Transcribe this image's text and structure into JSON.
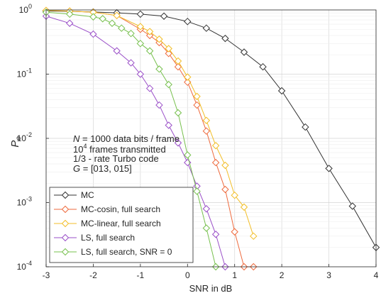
{
  "chart_data": {
    "type": "line",
    "xlabel": "SNR in dB",
    "ylabel": "P_e",
    "ylabel_main": "P",
    "ylabel_sub": "e",
    "xlim": [
      -3,
      4
    ],
    "ylim": [
      0.0001,
      1
    ],
    "y_scale": "log",
    "grid": true,
    "legend_placement": "bottom-left",
    "x_ticks": [
      -3,
      -2,
      -1,
      0,
      1,
      2,
      3,
      4
    ],
    "x_tick_labels": [
      "-3",
      "-2",
      "-1",
      "0",
      "1",
      "2",
      "3",
      "4"
    ],
    "y_ticks": [
      {
        "value": 1,
        "base": "10",
        "exp": "0"
      },
      {
        "value": 0.1,
        "base": "10",
        "exp": "-1"
      },
      {
        "value": 0.01,
        "base": "10",
        "exp": "-2"
      },
      {
        "value": 0.001,
        "base": "10",
        "exp": "-3"
      },
      {
        "value": 0.0001,
        "base": "10",
        "exp": "-4"
      }
    ],
    "series": [
      {
        "name": "MC",
        "color": "#333333",
        "x": [
          -3,
          -2.5,
          -2,
          -1.5,
          -1,
          -0.5,
          0,
          0.4,
          0.8,
          1.2,
          1.6,
          2,
          2.5,
          3,
          3.5,
          4
        ],
        "y": [
          0.96,
          0.95,
          0.93,
          0.9,
          0.86,
          0.8,
          0.66,
          0.52,
          0.36,
          0.22,
          0.13,
          0.055,
          0.015,
          0.0034,
          0.00088,
          0.0002
        ]
      },
      {
        "name": "MC-cosin, full search",
        "color": "#EE6A3D",
        "x": [
          -3,
          -2.5,
          -2,
          -1.5,
          -1,
          -0.8,
          -0.6,
          -0.4,
          -0.2,
          0,
          0.2,
          0.4,
          0.6,
          0.8,
          1,
          1.2,
          1.4
        ],
        "y": [
          0.98,
          0.96,
          0.92,
          0.82,
          0.5,
          0.4,
          0.31,
          0.21,
          0.13,
          0.075,
          0.033,
          0.013,
          0.0042,
          0.0016,
          0.00035,
          0.0001,
          0.0001
        ]
      },
      {
        "name": "MC-linear, full search",
        "color": "#F2BE28",
        "x": [
          -3,
          -2.5,
          -2,
          -1.5,
          -1,
          -0.8,
          -0.6,
          -0.4,
          -0.2,
          0,
          0.2,
          0.4,
          0.6,
          0.8,
          1,
          1.2,
          1.4
        ],
        "y": [
          0.98,
          0.96,
          0.92,
          0.82,
          0.55,
          0.46,
          0.35,
          0.25,
          0.16,
          0.09,
          0.045,
          0.019,
          0.0077,
          0.0038,
          0.0013,
          0.00085,
          0.0003
        ]
      },
      {
        "name": "LS, full search",
        "color": "#9A4FC8",
        "x": [
          -3,
          -2.5,
          -2,
          -1.5,
          -1.2,
          -1,
          -0.8,
          -0.6,
          -0.4,
          -0.2,
          0,
          0.2,
          0.4,
          0.6,
          0.8
        ],
        "y": [
          0.8,
          0.62,
          0.42,
          0.23,
          0.15,
          0.1,
          0.06,
          0.033,
          0.016,
          0.0085,
          0.0042,
          0.0018,
          0.0008,
          0.00032,
          0.0001
        ]
      },
      {
        "name": "LS, full search, SNR = 0",
        "color": "#77C04E",
        "x": [
          -3,
          -2.5,
          -2,
          -1.8,
          -1.6,
          -1.4,
          -1.2,
          -1,
          -0.8,
          -0.6,
          -0.4,
          -0.2,
          0,
          0.2,
          0.4,
          0.6
        ],
        "y": [
          0.92,
          0.86,
          0.78,
          0.73,
          0.62,
          0.52,
          0.43,
          0.3,
          0.23,
          0.12,
          0.069,
          0.025,
          0.0055,
          0.0015,
          0.0004,
          0.0001
        ]
      }
    ],
    "annotation": {
      "line1_var": "N",
      "line1_rest": " = 1000 data bits / frame",
      "line2_base": "10",
      "line2_exp": "4",
      "line2_rest": " frames transmitted",
      "line3": "1/3 - rate Turbo code",
      "line4_var": "G",
      "line4_rest": " = [013, 015]"
    }
  }
}
